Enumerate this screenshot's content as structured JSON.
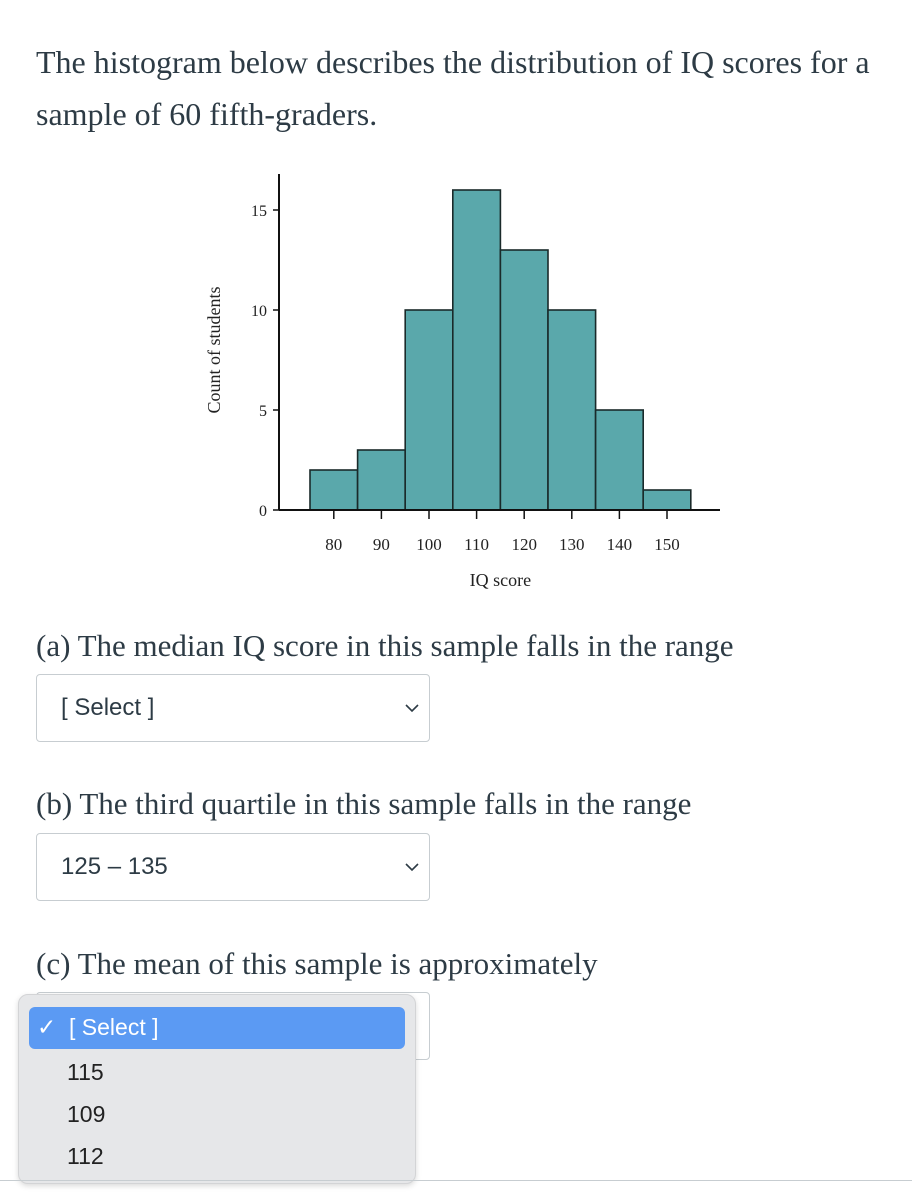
{
  "intro": "The histogram below describes the distribution of IQ scores for a sample of 60 fifth-graders.",
  "questions": {
    "a": {
      "text": "(a) The median IQ score in this sample falls in the range",
      "selected": "[ Select ]"
    },
    "b": {
      "text": "(b) The third quartile in this sample falls in the range",
      "selected": "125 – 135"
    },
    "c": {
      "text": "(c) The mean of this sample is approximately",
      "options": [
        "[ Select ]",
        "115",
        "109",
        "112"
      ],
      "highlighted": "[ Select ]"
    }
  },
  "chart_data": {
    "type": "bar",
    "bins": [
      [
        75,
        85
      ],
      [
        85,
        95
      ],
      [
        95,
        105
      ],
      [
        105,
        115
      ],
      [
        115,
        125
      ],
      [
        125,
        135
      ],
      [
        135,
        145
      ],
      [
        145,
        155
      ]
    ],
    "values": [
      2,
      3,
      10,
      16,
      13,
      10,
      5,
      1
    ],
    "xticks": [
      80,
      90,
      100,
      110,
      120,
      130,
      140,
      150
    ],
    "yticks": [
      0,
      5,
      10,
      15
    ],
    "xlabel": "IQ score",
    "ylabel": "Count of students",
    "ylim": [
      0,
      16.8
    ],
    "bar_color": "#5aa8ab",
    "edge_color": "#1a2a2a"
  },
  "colors": {
    "text": "#2d3b45",
    "highlight": "#5b9af3",
    "border": "#c7cdd1"
  }
}
